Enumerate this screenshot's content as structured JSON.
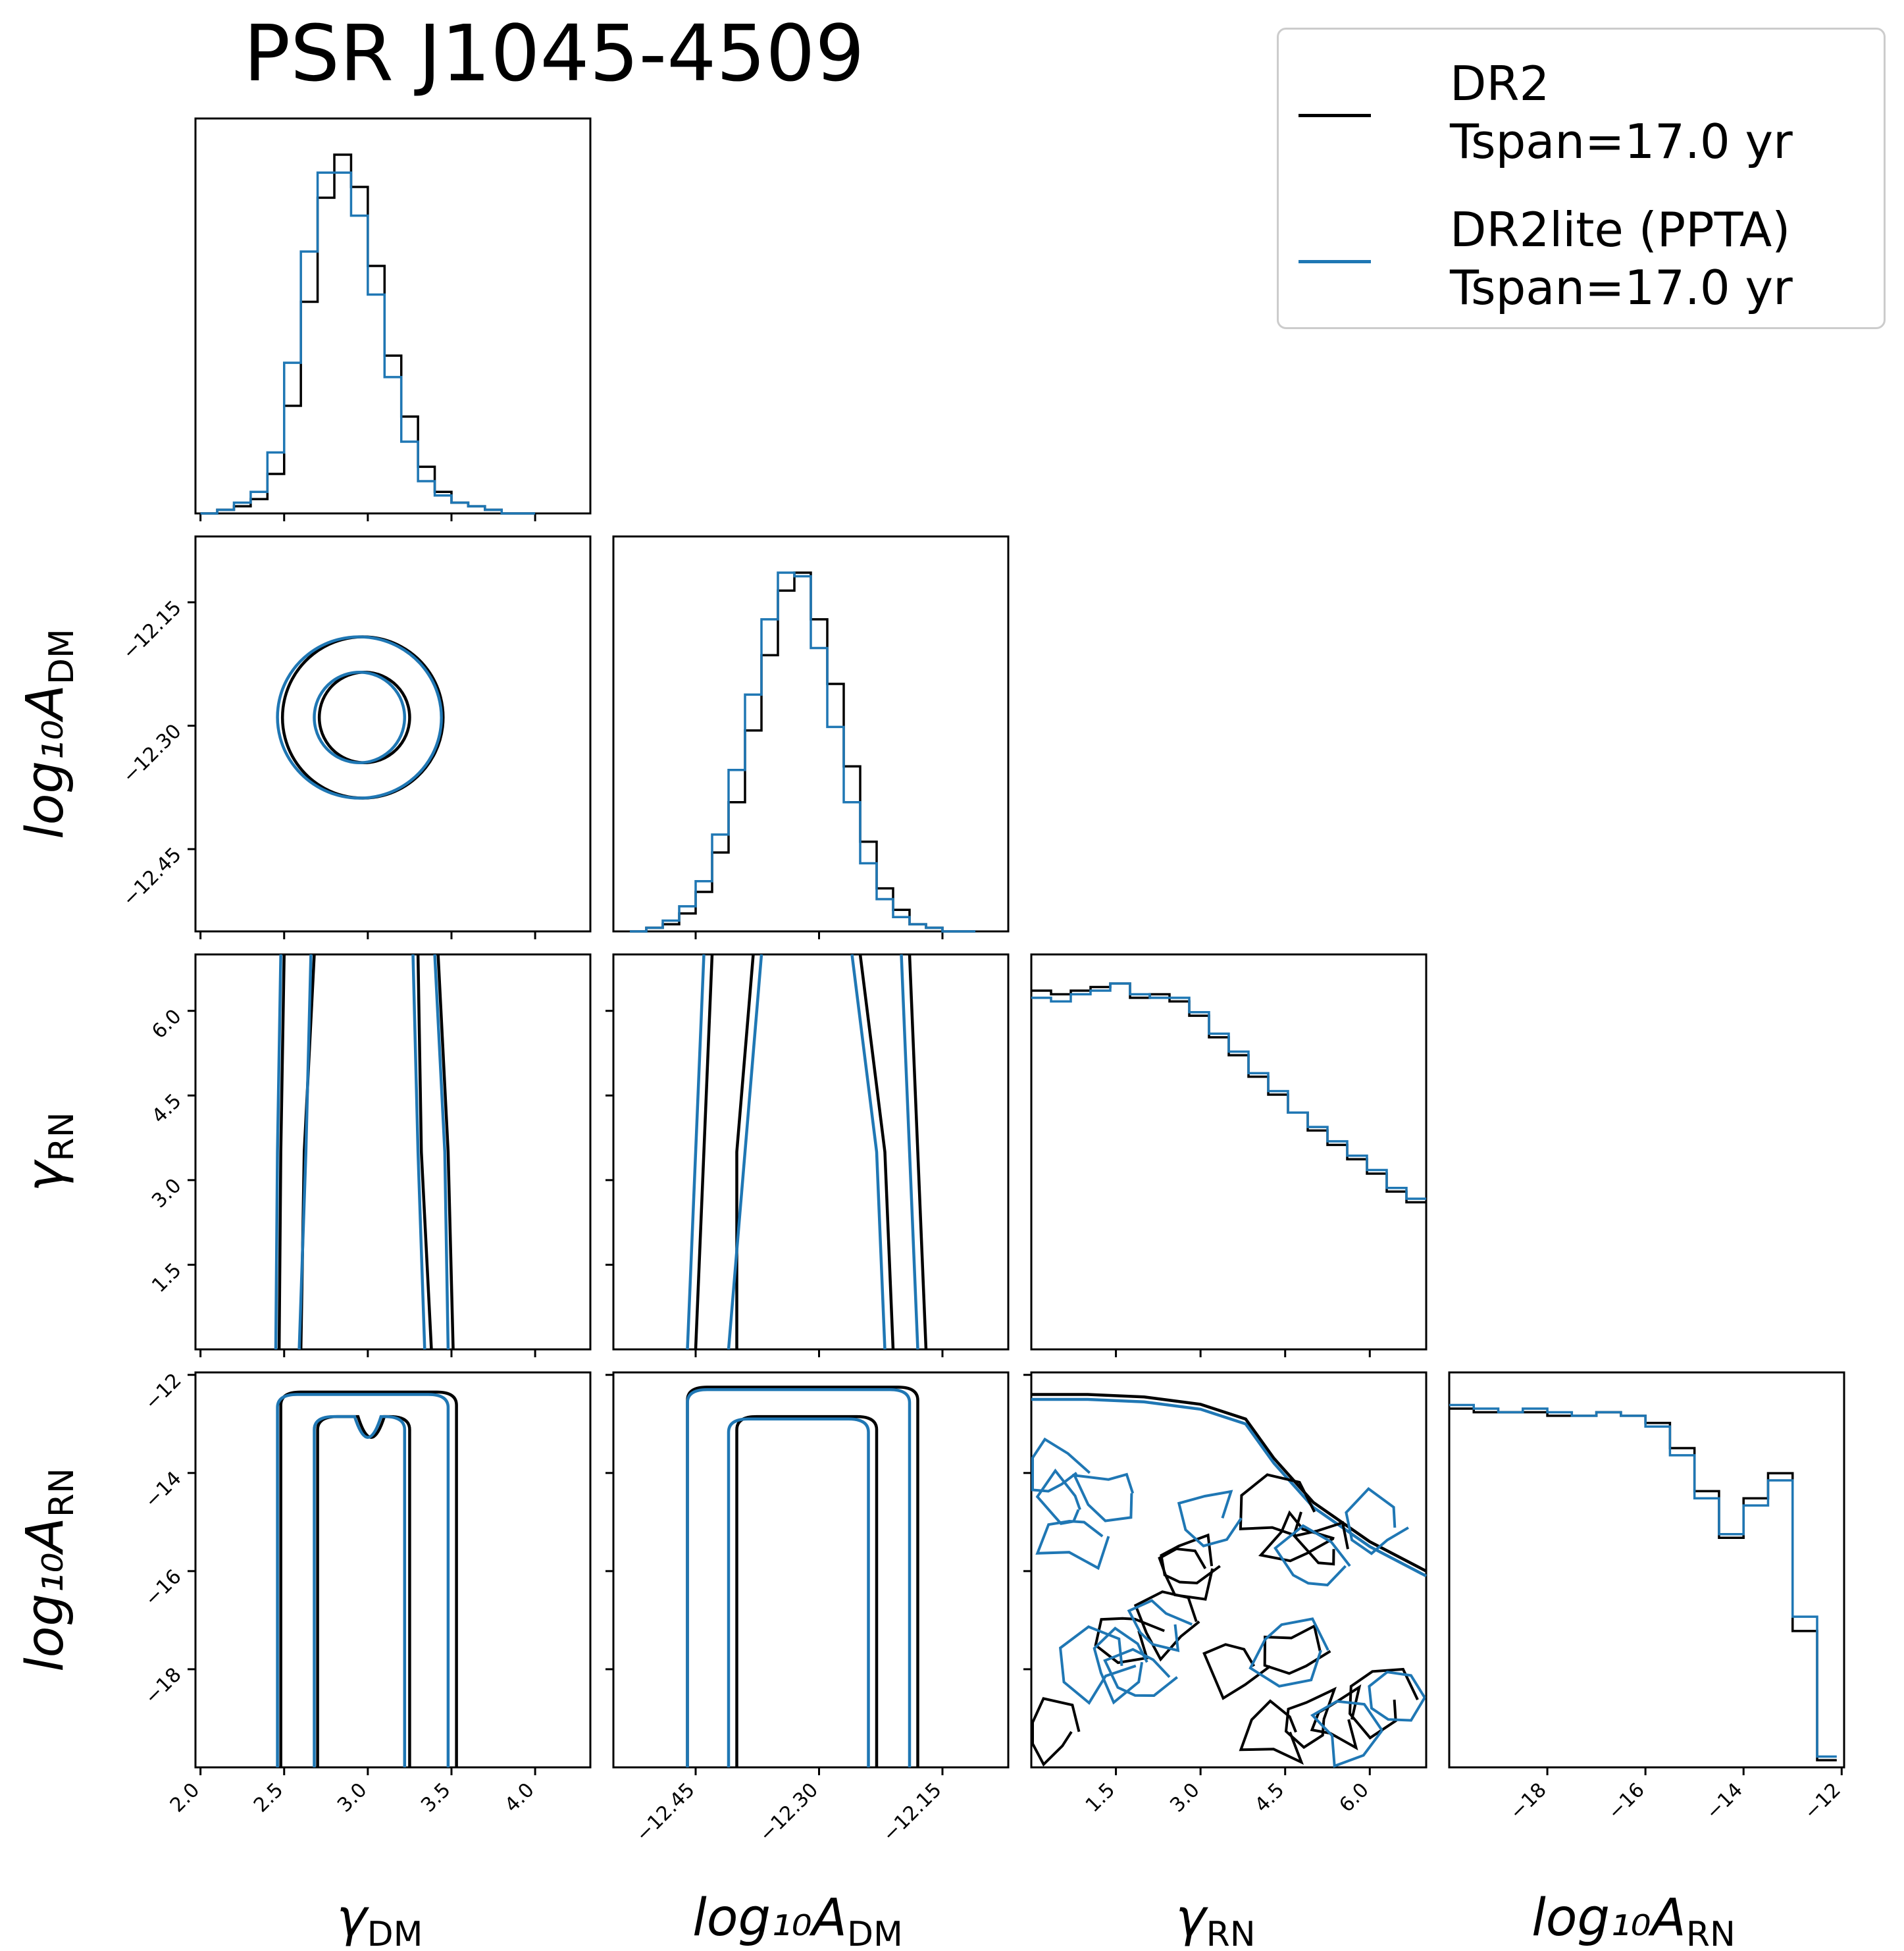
{
  "title": "PSR J1045-4509",
  "legend": [
    {
      "line1": "DR2",
      "line2": "Tspan=17.0 yr",
      "color": "#000000"
    },
    {
      "line1": "DR2lite (PPTA)",
      "line2": "Tspan=17.0 yr",
      "color": "#1f77b4"
    }
  ],
  "chart_data": {
    "type": "corner",
    "parameters": [
      {
        "name": "gamma_DM",
        "label_main": "γ",
        "label_sub": "DM",
        "range": [
          1.97,
          4.33
        ],
        "ticks": [
          2.0,
          2.5,
          3.0,
          3.5,
          4.0
        ],
        "tick_labels": [
          "2.0",
          "2.5",
          "3.0",
          "3.5",
          "4.0"
        ]
      },
      {
        "name": "log10_A_DM",
        "label_main": "log₁₀A",
        "label_sub": "DM",
        "range": [
          -12.55,
          -12.07
        ],
        "ticks": [
          -12.45,
          -12.3,
          -12.15
        ],
        "tick_labels": [
          "−12.45",
          "−12.30",
          "−12.15"
        ]
      },
      {
        "name": "gamma_RN",
        "label_main": "γ",
        "label_sub": "RN",
        "range": [
          0.0,
          7.0
        ],
        "ticks": [
          1.5,
          3.0,
          4.5,
          6.0
        ],
        "tick_labels": [
          "1.5",
          "3.0",
          "4.5",
          "6.0"
        ]
      },
      {
        "name": "log10_A_RN",
        "label_main": "log₁₀A",
        "label_sub": "RN",
        "range": [
          -20.0,
          -11.95
        ],
        "ticks": [
          -18,
          -16,
          -14,
          -12
        ],
        "tick_labels": [
          "−18",
          "−16",
          "−14",
          "−12"
        ]
      }
    ],
    "series": [
      {
        "name": "DR2",
        "color": "#000000",
        "hist": [
          {
            "edges": [
              2.0,
              2.1,
              2.2,
              2.3,
              2.4,
              2.5,
              2.6,
              2.7,
              2.8,
              2.9,
              3.0,
              3.1,
              3.2,
              3.3,
              3.4,
              3.5,
              3.6,
              3.7,
              3.8,
              3.9,
              4.0
            ],
            "values": [
              0.0,
              0.01,
              0.02,
              0.04,
              0.11,
              0.3,
              0.59,
              0.88,
              1.0,
              0.91,
              0.69,
              0.44,
              0.27,
              0.13,
              0.06,
              0.03,
              0.02,
              0.01,
              0.0,
              0.0
            ]
          },
          {
            "edges": [
              -12.53,
              -12.51,
              -12.49,
              -12.47,
              -12.45,
              -12.43,
              -12.41,
              -12.39,
              -12.37,
              -12.35,
              -12.33,
              -12.31,
              -12.29,
              -12.27,
              -12.25,
              -12.23,
              -12.21,
              -12.19,
              -12.17,
              -12.15,
              -12.13,
              -12.11
            ],
            "values": [
              0.0,
              0.01,
              0.02,
              0.05,
              0.11,
              0.22,
              0.36,
              0.56,
              0.77,
              0.95,
              1.0,
              0.87,
              0.69,
              0.46,
              0.25,
              0.12,
              0.06,
              0.02,
              0.01,
              0.0,
              0.0
            ]
          },
          {
            "edges": [
              0.0,
              0.35,
              0.7,
              1.05,
              1.4,
              1.75,
              2.1,
              2.45,
              2.8,
              3.15,
              3.5,
              3.85,
              4.2,
              4.55,
              4.9,
              5.25,
              5.6,
              5.95,
              6.3,
              6.65,
              7.0
            ],
            "values": [
              1.0,
              0.99,
              1.0,
              1.01,
              1.02,
              0.98,
              0.99,
              0.97,
              0.93,
              0.87,
              0.82,
              0.76,
              0.71,
              0.66,
              0.61,
              0.57,
              0.53,
              0.49,
              0.44,
              0.41
            ]
          },
          {
            "edges": [
              -20.0,
              -19.5,
              -19.0,
              -18.5,
              -18.0,
              -17.5,
              -17.0,
              -16.5,
              -16.0,
              -15.5,
              -15.0,
              -14.5,
              -14.0,
              -13.5,
              -13.0,
              -12.5,
              -12.1
            ],
            "values": [
              1.0,
              0.99,
              0.99,
              0.99,
              0.98,
              0.98,
              0.99,
              0.98,
              0.96,
              0.89,
              0.77,
              0.64,
              0.75,
              0.82,
              0.38,
              0.02
            ]
          }
        ],
        "contours": {
          "1-0": [
            {
              "center": [
                2.98,
                -12.29
              ],
              "radii": [
                0.27,
                0.055
              ],
              "angle": 0.12
            },
            {
              "center": [
                2.97,
                -12.29
              ],
              "radii": [
                0.48,
                0.098
              ],
              "angle": 0.12
            }
          ],
          "2-0": [
            {
              "x_left": [
                2.68,
                2.62,
                2.6
              ],
              "x_right": [
                3.3,
                3.32,
                3.38
              ]
            },
            {
              "x_left": [
                2.5,
                2.48,
                2.47
              ],
              "x_right": [
                3.42,
                3.48,
                3.51
              ]
            }
          ],
          "2-1": [
            {
              "x_left": [
                -12.38,
                -12.4,
                -12.4
              ],
              "x_right": [
                -12.25,
                -12.22,
                -12.21
              ]
            },
            {
              "x_left": [
                -12.43,
                -12.44,
                -12.45
              ],
              "x_right": [
                -12.19,
                -12.18,
                -12.17
              ]
            }
          ],
          "3-0": [
            {
              "x_left": 2.7,
              "x_right": 3.25,
              "top": -12.85,
              "notch_x": 3.02,
              "notch_y": -13.7
            },
            {
              "x_left": 2.48,
              "x_right": 3.53,
              "top": -12.35,
              "notch_x": 3.0,
              "notch_y": -12.35
            }
          ],
          "3-1": [
            {
              "x_left": -12.4,
              "x_right": -12.23,
              "top": -12.85,
              "notch_x": -12.31,
              "notch_y": -12.85
            },
            {
              "x_left": -12.46,
              "x_right": -12.18,
              "top": -12.25,
              "notch_x": -12.32,
              "notch_y": -12.25
            }
          ],
          "3-2": [
            {
              "boundary_x": [
                0.0,
                1.0,
                2.0,
                3.0,
                3.8,
                4.3,
                5.0,
                6.0,
                7.0
              ],
              "boundary_y": [
                -12.4,
                -12.4,
                -12.45,
                -12.6,
                -12.9,
                -13.7,
                -14.6,
                -15.4,
                -16.0
              ]
            }
          ]
        }
      },
      {
        "name": "DR2lite (PPTA)",
        "color": "#1f77b4",
        "hist": [
          {
            "edges": [
              2.0,
              2.1,
              2.2,
              2.3,
              2.4,
              2.5,
              2.6,
              2.7,
              2.8,
              2.9,
              3.0,
              3.1,
              3.2,
              3.3,
              3.4,
              3.5,
              3.6,
              3.7,
              3.8,
              3.9,
              4.0
            ],
            "values": [
              0.0,
              0.01,
              0.03,
              0.06,
              0.17,
              0.42,
              0.73,
              0.95,
              0.95,
              0.83,
              0.61,
              0.38,
              0.2,
              0.09,
              0.05,
              0.03,
              0.02,
              0.01,
              0.0,
              0.0
            ]
          },
          {
            "edges": [
              -12.53,
              -12.51,
              -12.49,
              -12.47,
              -12.45,
              -12.43,
              -12.41,
              -12.39,
              -12.37,
              -12.35,
              -12.33,
              -12.31,
              -12.29,
              -12.27,
              -12.25,
              -12.23,
              -12.21,
              -12.19,
              -12.17,
              -12.15,
              -12.13,
              -12.11
            ],
            "values": [
              0.0,
              0.01,
              0.03,
              0.07,
              0.14,
              0.27,
              0.45,
              0.66,
              0.87,
              1.0,
              0.99,
              0.79,
              0.57,
              0.36,
              0.19,
              0.09,
              0.04,
              0.02,
              0.01,
              0.0,
              0.0
            ]
          },
          {
            "edges": [
              0.0,
              0.35,
              0.7,
              1.05,
              1.4,
              1.75,
              2.1,
              2.45,
              2.8,
              3.15,
              3.5,
              3.85,
              4.2,
              4.55,
              4.9,
              5.25,
              5.6,
              5.95,
              6.3,
              6.65,
              7.0
            ],
            "values": [
              0.98,
              0.97,
              0.99,
              1.0,
              1.02,
              0.99,
              0.98,
              0.98,
              0.94,
              0.88,
              0.83,
              0.77,
              0.72,
              0.66,
              0.62,
              0.58,
              0.54,
              0.5,
              0.45,
              0.42
            ]
          },
          {
            "edges": [
              -20.0,
              -19.5,
              -19.0,
              -18.5,
              -18.0,
              -17.5,
              -17.0,
              -16.5,
              -16.0,
              -15.5,
              -15.0,
              -14.5,
              -14.0,
              -13.5,
              -13.0,
              -12.5,
              -12.1
            ],
            "values": [
              1.01,
              1.0,
              0.99,
              1.0,
              0.99,
              0.98,
              0.99,
              0.98,
              0.95,
              0.87,
              0.75,
              0.65,
              0.73,
              0.8,
              0.42,
              0.03
            ]
          }
        ],
        "contours": {
          "1-0": [
            {
              "center": [
                2.95,
                -12.29
              ],
              "radii": [
                0.27,
                0.055
              ],
              "angle": 0.12
            },
            {
              "center": [
                2.95,
                -12.29
              ],
              "radii": [
                0.49,
                0.098
              ],
              "angle": 0.12
            }
          ],
          "2-0": [
            {
              "x_left": [
                2.66,
                2.63,
                2.59
              ],
              "x_right": [
                3.27,
                3.3,
                3.34
              ]
            },
            {
              "x_left": [
                2.48,
                2.46,
                2.45
              ],
              "x_right": [
                3.4,
                3.46,
                3.48
              ]
            }
          ],
          "2-1": [
            {
              "x_left": [
                -12.37,
                -12.39,
                -12.41
              ],
              "x_right": [
                -12.26,
                -12.23,
                -12.22
              ]
            },
            {
              "x_left": [
                -12.44,
                -12.45,
                -12.46
              ],
              "x_right": [
                -12.2,
                -12.19,
                -12.18
              ]
            }
          ],
          "3-0": [
            {
              "x_left": 2.68,
              "x_right": 3.22,
              "top": -12.85,
              "notch_x": 3.0,
              "notch_y": -13.7
            },
            {
              "x_left": 2.46,
              "x_right": 3.48,
              "top": -12.4,
              "notch_x": 3.0,
              "notch_y": -12.4
            }
          ],
          "3-1": [
            {
              "x_left": -12.41,
              "x_right": -12.24,
              "top": -12.9,
              "notch_x": -12.32,
              "notch_y": -12.9
            },
            {
              "x_left": -12.46,
              "x_right": -12.19,
              "top": -12.3,
              "notch_x": -12.32,
              "notch_y": -12.3
            }
          ],
          "3-2": [
            {
              "boundary_x": [
                0.0,
                1.0,
                2.0,
                3.0,
                3.8,
                4.3,
                5.0,
                6.0,
                7.0
              ],
              "boundary_y": [
                -12.5,
                -12.5,
                -12.55,
                -12.7,
                -13.0,
                -13.8,
                -14.7,
                -15.5,
                -16.1
              ]
            }
          ]
        }
      }
    ]
  }
}
